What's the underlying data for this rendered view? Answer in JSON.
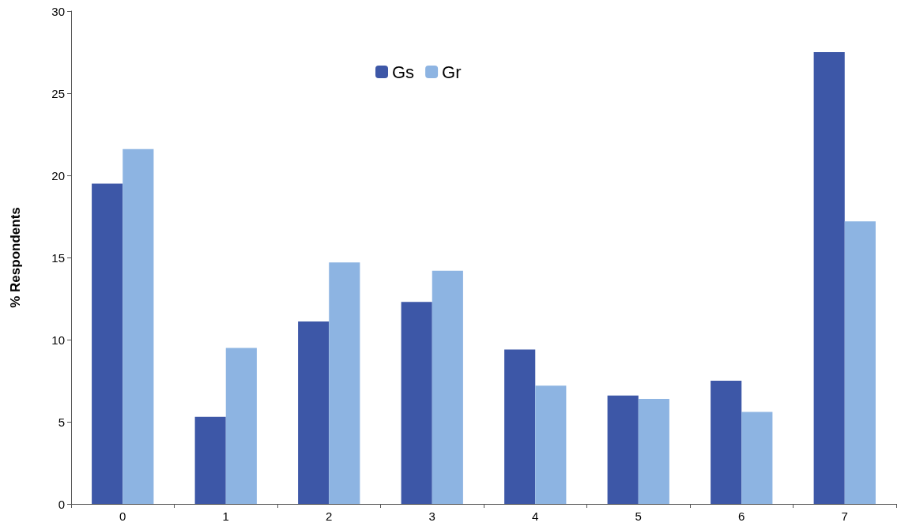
{
  "chart_data": {
    "type": "bar",
    "ylabel": "% Respondents",
    "categories": [
      "0",
      "1",
      "2",
      "3",
      "4",
      "5",
      "6",
      "7"
    ],
    "series": [
      {
        "name": "Gs",
        "color": "#3d57a7",
        "values": [
          19.5,
          5.3,
          11.1,
          12.3,
          9.4,
          6.6,
          7.5,
          27.5
        ]
      },
      {
        "name": "Gr",
        "color": "#8db4e2",
        "values": [
          21.6,
          9.5,
          14.7,
          14.2,
          7.2,
          6.4,
          5.6,
          17.2
        ]
      }
    ],
    "ylim": [
      0,
      30
    ],
    "yticks": [
      0,
      5,
      10,
      15,
      20,
      25,
      30
    ],
    "grid": false,
    "legend": "top"
  }
}
